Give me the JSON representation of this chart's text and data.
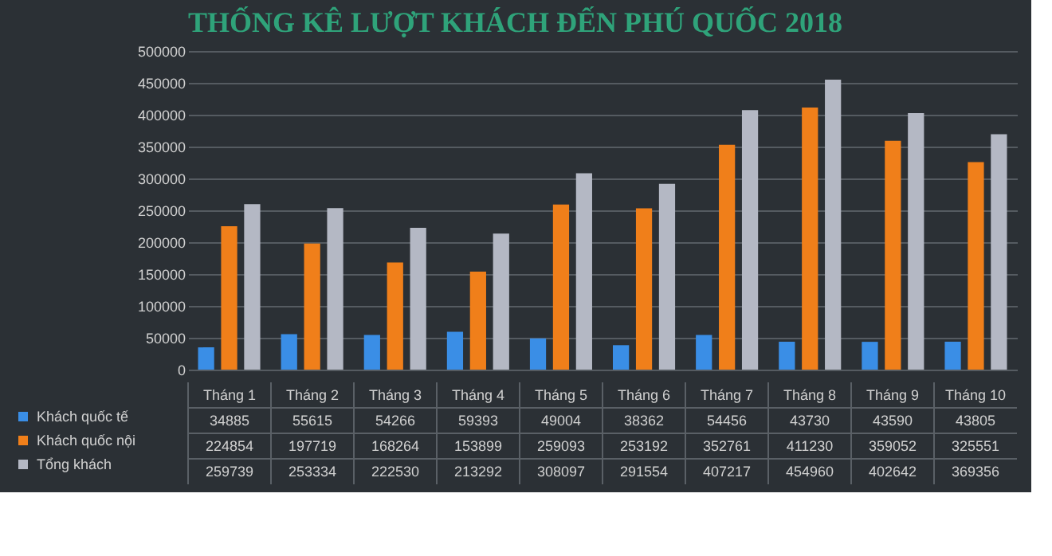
{
  "chart_data": {
    "type": "bar",
    "title": "THỐNG KÊ LƯỢT KHÁCH ĐẾN PHÚ QUỐC 2018",
    "categories": [
      "Tháng 1",
      "Tháng 2",
      "Tháng 3",
      "Tháng 4",
      "Tháng 5",
      "Tháng 6",
      "Tháng 7",
      "Tháng 8",
      "Tháng 9",
      "Tháng 10"
    ],
    "series": [
      {
        "name": "Khách quốc tế",
        "color": "#3a8ee6",
        "values": [
          34885,
          55615,
          54266,
          59393,
          49004,
          38362,
          54456,
          43730,
          43590,
          43805
        ]
      },
      {
        "name": "Khách quốc nội",
        "color": "#f07f1a",
        "values": [
          224854,
          197719,
          168264,
          153899,
          259093,
          253192,
          352761,
          411230,
          359052,
          325551
        ]
      },
      {
        "name": "Tổng khách",
        "color": "#b4b8c4",
        "values": [
          259739,
          253334,
          222530,
          213292,
          308097,
          291554,
          407217,
          454960,
          402642,
          369356
        ]
      }
    ],
    "ylim": [
      0,
      500000
    ],
    "yticks": [
      0,
      50000,
      100000,
      150000,
      200000,
      250000,
      300000,
      350000,
      400000,
      450000,
      500000
    ],
    "grid": "y",
    "data_labels": true,
    "legend": "bottom"
  }
}
